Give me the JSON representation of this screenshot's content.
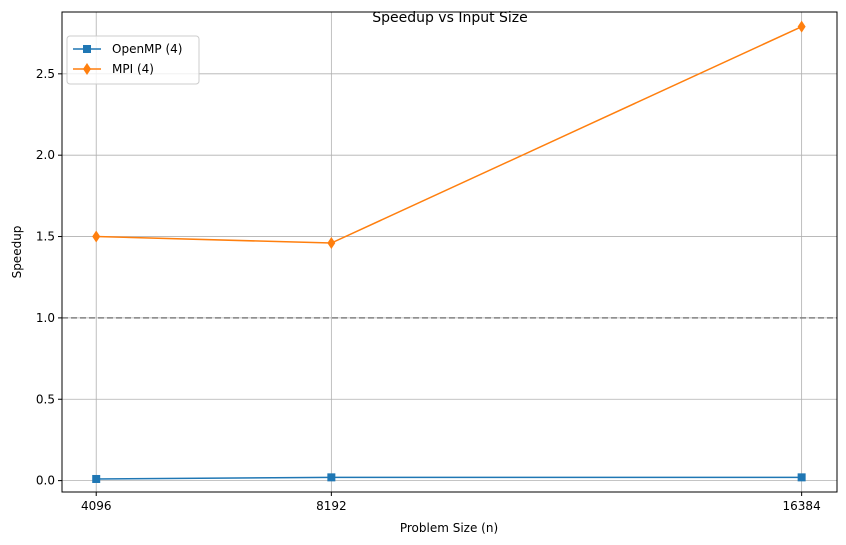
{
  "chart_data": {
    "type": "line",
    "title": "Speedup vs Input Size",
    "xlabel": "Problem Size (n)",
    "ylabel": "Speedup",
    "x": [
      4096,
      8192,
      16384
    ],
    "x_tick_labels": [
      "4096",
      "8192",
      "16384"
    ],
    "xlim": [
      3500,
      17000
    ],
    "ylim": [
      -0.07,
      2.88
    ],
    "y_ticks": [
      0.0,
      0.5,
      1.0,
      1.5,
      2.0,
      2.5
    ],
    "y_tick_labels": [
      "0.0",
      "0.5",
      "1.0",
      "1.5",
      "2.0",
      "2.5"
    ],
    "grid": true,
    "legend_position": "top-left",
    "reference_line": {
      "y": 1.0,
      "style": "dashed",
      "color": "#808080"
    },
    "series": [
      {
        "name": "OpenMP (4)",
        "values": [
          0.01,
          0.02,
          0.02
        ],
        "color": "#1f77b4",
        "marker": "square"
      },
      {
        "name": "MPI (4)",
        "values": [
          1.5,
          1.46,
          2.79
        ],
        "color": "#ff7f0e",
        "marker": "diamond"
      }
    ]
  }
}
